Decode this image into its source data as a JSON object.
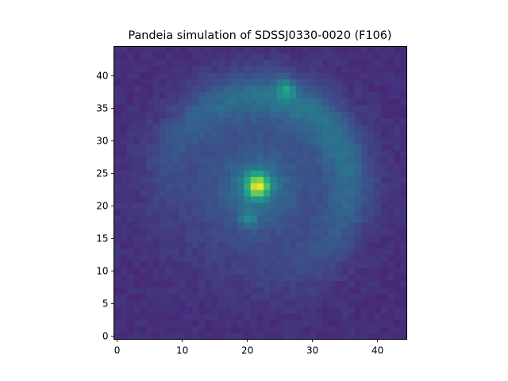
{
  "chart_data": {
    "type": "heatmap",
    "title": "Pandeia simulation of SDSSJ0330-0020 (F106)",
    "xlabel": "",
    "ylabel": "",
    "xlim": [
      -0.5,
      44.5
    ],
    "ylim": [
      -0.5,
      44.5
    ],
    "x_ticks": [
      "0",
      "10",
      "20",
      "30",
      "40"
    ],
    "y_ticks": [
      "0",
      "5",
      "10",
      "15",
      "20",
      "25",
      "30",
      "35",
      "40"
    ],
    "grid": false,
    "colormap": "viridis",
    "colorbar": false,
    "image_size": [
      45,
      45
    ],
    "image_components": [
      {
        "type": "lens_galaxy",
        "x": 21.6,
        "y": 23.1,
        "relative_peak": 1.0
      },
      {
        "type": "lensed_knot",
        "x": 25.9,
        "y": 38.0,
        "relative_peak": 0.58
      },
      {
        "type": "lensed_knot",
        "x": 20.2,
        "y": 18.0,
        "relative_peak": 0.55
      },
      {
        "type": "lensed_arc",
        "center_x": 21.6,
        "center_y": 23.1,
        "radius": 14.0,
        "relative_peak": 0.22
      }
    ]
  }
}
